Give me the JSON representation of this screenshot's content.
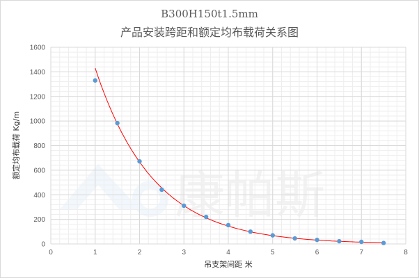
{
  "chart_data": {
    "type": "scatter",
    "title": "B300H150t1.5mm",
    "subtitle": "产品安装跨距和额定均布载荷关系图",
    "xlabel": "吊支架间距 米",
    "ylabel": "额定均布载荷 Kg/m",
    "xlim": [
      0,
      8
    ],
    "ylim": [
      0,
      1600
    ],
    "xticks": [
      0,
      1,
      2,
      3,
      4,
      5,
      6,
      7,
      8
    ],
    "yticks": [
      0,
      200,
      400,
      600,
      800,
      1000,
      1200,
      1400,
      1600
    ],
    "grid": true,
    "legend": "none",
    "series": [
      {
        "x": [
          1,
          1.5,
          2,
          2.5,
          3,
          3.5,
          4,
          4.5,
          5,
          5.5,
          6,
          6.5,
          7,
          7.5
        ],
        "y": [
          1330,
          983,
          672,
          441,
          311,
          220,
          153,
          100,
          70,
          45,
          33,
          22,
          17,
          8
        ],
        "color": "#5b9bd5"
      }
    ],
    "trendline": {
      "type": "exponential",
      "color": "#ff0000"
    },
    "watermark": "康帕斯"
  }
}
